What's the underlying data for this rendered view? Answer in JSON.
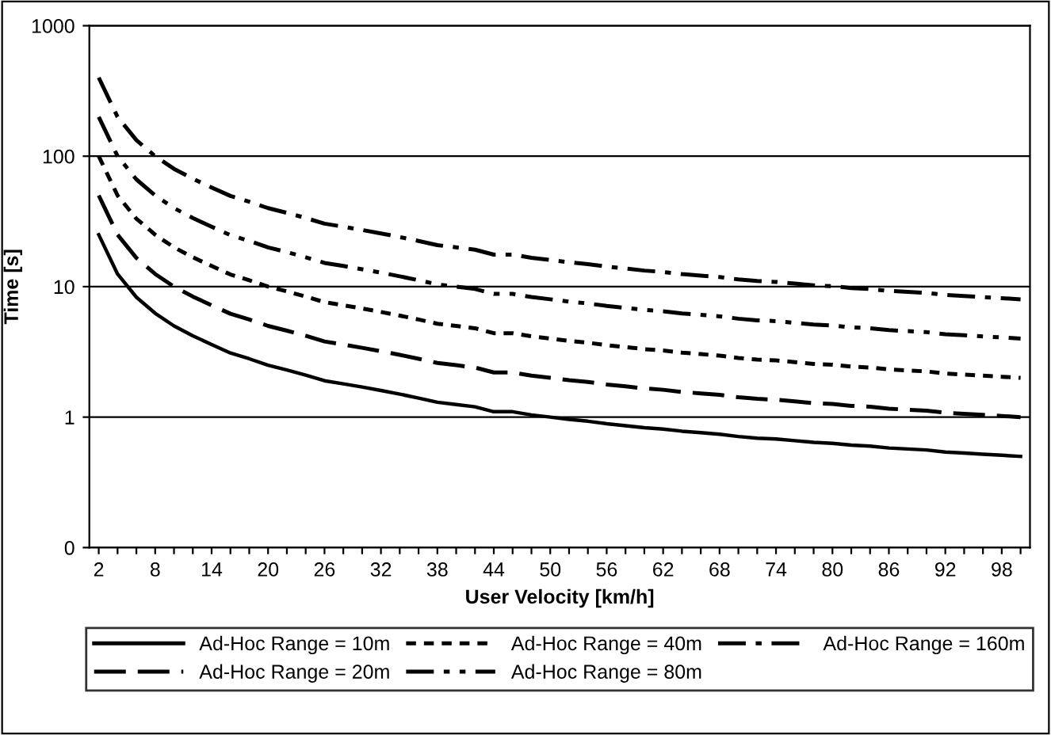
{
  "chart_data": {
    "type": "line",
    "xlabel": "User Velocity [km/h]",
    "ylabel": "Time [s]",
    "categories": [
      "2",
      null,
      null,
      "8",
      null,
      null,
      "14",
      null,
      null,
      "20",
      null,
      null,
      "26",
      null,
      null,
      "32",
      null,
      null,
      "38",
      null,
      null,
      "44",
      null,
      null,
      "50",
      null,
      null,
      "56",
      null,
      null,
      "62",
      null,
      null,
      "68",
      null,
      null,
      "74",
      null,
      null,
      "80",
      null,
      null,
      "86",
      null,
      null,
      "92",
      null,
      null,
      "98",
      null
    ],
    "log": "y",
    "ylim": [
      0.1,
      1000
    ],
    "yticks": [
      {
        "value": 0.1,
        "label": "0"
      },
      1,
      10,
      100,
      1000
    ],
    "grid": "y",
    "legend": "bottom",
    "marker": "none",
    "series": [
      {
        "name": "Ad-Hoc Range = 10m",
        "color": "#000000",
        "line_style": "solid",
        "values": [
          25,
          12.5,
          8.3,
          6.25,
          5,
          4.2,
          3.6,
          3.1,
          2.8,
          2.5,
          2.3,
          2.1,
          1.9,
          1.8,
          1.7,
          1.6,
          1.5,
          1.4,
          1.3,
          1.25,
          1.2,
          1.1,
          1.1,
          1.04,
          1,
          0.96,
          0.93,
          0.89,
          0.86,
          0.83,
          0.81,
          0.78,
          0.76,
          0.74,
          0.71,
          0.69,
          0.68,
          0.66,
          0.64,
          0.63,
          0.61,
          0.6,
          0.58,
          0.57,
          0.56,
          0.54,
          0.53,
          0.52,
          0.51,
          0.5
        ]
      },
      {
        "name": "Ad-Hoc Range = 20m",
        "color": "#000000",
        "line_style": "dashed",
        "values": [
          50,
          25,
          16.6,
          12.5,
          10,
          8.4,
          7.2,
          6.2,
          5.6,
          5,
          4.6,
          4.2,
          3.8,
          3.6,
          3.4,
          3.2,
          3,
          2.8,
          2.6,
          2.5,
          2.4,
          2.2,
          2.2,
          2.08,
          2,
          1.92,
          1.86,
          1.78,
          1.72,
          1.66,
          1.62,
          1.56,
          1.52,
          1.48,
          1.42,
          1.38,
          1.36,
          1.32,
          1.28,
          1.26,
          1.22,
          1.2,
          1.16,
          1.14,
          1.12,
          1.08,
          1.06,
          1.04,
          1.02,
          1
        ]
      },
      {
        "name": "Ad-Hoc Range = 40m",
        "color": "#000000",
        "line_style": "dotted",
        "values": [
          100,
          50,
          33.2,
          25,
          20,
          16.8,
          14.4,
          12.4,
          11.2,
          10,
          9.2,
          8.4,
          7.6,
          7.2,
          6.8,
          6.4,
          6,
          5.6,
          5.2,
          5,
          4.8,
          4.4,
          4.4,
          4.16,
          4,
          3.84,
          3.72,
          3.56,
          3.44,
          3.32,
          3.24,
          3.12,
          3.04,
          2.96,
          2.84,
          2.76,
          2.72,
          2.64,
          2.56,
          2.52,
          2.44,
          2.4,
          2.32,
          2.28,
          2.24,
          2.16,
          2.12,
          2.08,
          2.04,
          2
        ]
      },
      {
        "name": "Ad-Hoc Range = 80m",
        "color": "#000000",
        "line_style": "dashdotdot",
        "values": [
          200,
          100,
          66.4,
          50,
          40,
          33.6,
          28.8,
          24.8,
          22.4,
          20,
          18.4,
          16.8,
          15.2,
          14.4,
          13.6,
          12.8,
          12,
          11.2,
          10.4,
          10,
          9.6,
          8.8,
          8.8,
          8.32,
          8,
          7.68,
          7.44,
          7.12,
          6.88,
          6.64,
          6.48,
          6.24,
          6.08,
          5.92,
          5.68,
          5.52,
          5.44,
          5.28,
          5.12,
          5.04,
          4.88,
          4.8,
          4.64,
          4.56,
          4.48,
          4.32,
          4.24,
          4.16,
          4.08,
          4
        ]
      },
      {
        "name": "Ad-Hoc Range = 160m",
        "color": "#000000",
        "line_style": "dashdot",
        "values": [
          400,
          200,
          132.8,
          100,
          80,
          67.2,
          57.6,
          49.6,
          44.8,
          40,
          36.8,
          33.6,
          30.4,
          28.8,
          27.2,
          25.6,
          24,
          22.4,
          20.8,
          20,
          19.2,
          17.6,
          17.6,
          16.64,
          16,
          15.36,
          14.88,
          14.24,
          13.76,
          13.28,
          12.96,
          12.48,
          12.16,
          11.84,
          11.36,
          11.04,
          10.88,
          10.56,
          10.24,
          10.08,
          9.76,
          9.6,
          9.28,
          9.12,
          8.96,
          8.64,
          8.48,
          8.32,
          8.16,
          8
        ]
      }
    ]
  }
}
